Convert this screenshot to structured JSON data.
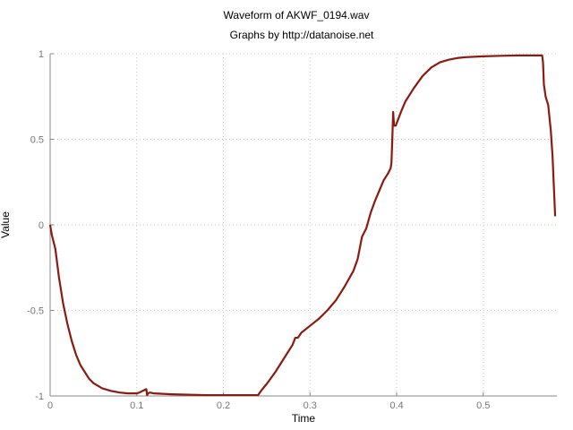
{
  "chart_data": {
    "type": "line",
    "title": "Waveform of AKWF_0194.wav",
    "subtitle": "Graphs by http://datanoise.net",
    "xlabel": "Time",
    "ylabel": "Value",
    "xlim": [
      0,
      0.585
    ],
    "ylim": [
      -1,
      1
    ],
    "xticks": [
      {
        "value": 0,
        "label": "0"
      },
      {
        "value": 0.1,
        "label": "0.1"
      },
      {
        "value": 0.2,
        "label": "0.2"
      },
      {
        "value": 0.3,
        "label": "0.3"
      },
      {
        "value": 0.4,
        "label": "0.4"
      },
      {
        "value": 0.5,
        "label": "0.5"
      }
    ],
    "yticks": [
      {
        "value": -1,
        "label": "-1"
      },
      {
        "value": -0.5,
        "label": "-0.5"
      },
      {
        "value": 0,
        "label": "0"
      },
      {
        "value": 0.5,
        "label": "0.5"
      },
      {
        "value": 1,
        "label": "1"
      }
    ],
    "grid": true,
    "series_color": "#8b1a10",
    "series": [
      {
        "x": [
          0,
          0.002,
          0.004,
          0.006,
          0.01,
          0.015,
          0.02,
          0.025,
          0.03,
          0.035,
          0.04,
          0.045,
          0.05,
          0.06,
          0.07,
          0.08,
          0.09,
          0.1,
          0.103,
          0.107,
          0.111,
          0.112,
          0.113,
          0.115,
          0.12,
          0.14,
          0.16,
          0.18,
          0.2,
          0.22,
          0.24,
          0.245,
          0.25,
          0.26,
          0.27,
          0.28,
          0.283,
          0.286,
          0.29,
          0.3,
          0.31,
          0.32,
          0.33,
          0.34,
          0.35,
          0.355,
          0.36,
          0.365,
          0.37,
          0.375,
          0.38,
          0.385,
          0.39,
          0.393,
          0.394,
          0.395,
          0.396,
          0.397,
          0.399,
          0.402,
          0.405,
          0.41,
          0.42,
          0.43,
          0.44,
          0.45,
          0.46,
          0.47,
          0.48,
          0.5,
          0.52,
          0.54,
          0.56,
          0.568,
          0.569,
          0.57,
          0.572,
          0.575,
          0.578,
          0.58,
          0.583
        ],
        "y": [
          0,
          -0.06,
          -0.1,
          -0.14,
          -0.3,
          -0.46,
          -0.58,
          -0.68,
          -0.76,
          -0.82,
          -0.86,
          -0.9,
          -0.925,
          -0.955,
          -0.97,
          -0.98,
          -0.985,
          -0.985,
          -0.98,
          -0.97,
          -0.96,
          -0.995,
          -0.985,
          -0.98,
          -0.985,
          -0.99,
          -0.993,
          -0.995,
          -0.995,
          -0.995,
          -0.995,
          -0.96,
          -0.93,
          -0.86,
          -0.78,
          -0.7,
          -0.66,
          -0.66,
          -0.63,
          -0.59,
          -0.55,
          -0.5,
          -0.44,
          -0.36,
          -0.27,
          -0.2,
          -0.07,
          -0.02,
          0.07,
          0.14,
          0.2,
          0.26,
          0.3,
          0.33,
          0.36,
          0.5,
          0.66,
          0.58,
          0.58,
          0.62,
          0.66,
          0.72,
          0.8,
          0.87,
          0.92,
          0.95,
          0.965,
          0.975,
          0.98,
          0.985,
          0.988,
          0.99,
          0.99,
          0.99,
          0.95,
          0.82,
          0.75,
          0.7,
          0.55,
          0.4,
          0.05
        ]
      }
    ]
  }
}
